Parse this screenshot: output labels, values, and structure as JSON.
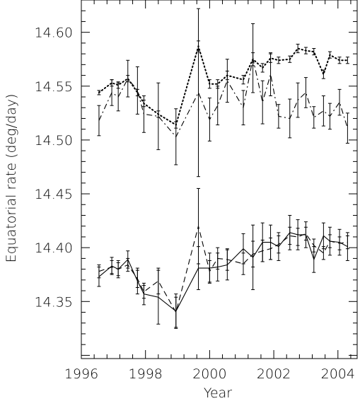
{
  "chart_data": {
    "type": "line",
    "title": "",
    "xlabel": "Year",
    "ylabel": "Equatorial rate (deg/day)",
    "xlim": [
      1996,
      2004.6
    ],
    "ylim": [
      14.297,
      14.63
    ],
    "x_ticks": [
      1996,
      1998,
      2000,
      2002,
      2004
    ],
    "x_tick_labels": [
      "1996",
      "1998",
      "2000",
      "2002",
      "2004"
    ],
    "y_ticks": [
      14.35,
      14.4,
      14.45,
      14.5,
      14.55,
      14.6
    ],
    "y_tick_labels": [
      "14.35",
      "14.40",
      "14.45",
      "14.50",
      "14.55",
      "14.60"
    ],
    "grid": false,
    "legend": "none",
    "series": [
      {
        "style": "dotted",
        "x": [
          1996.55,
          1996.95,
          1997.15,
          1997.45,
          1997.75,
          1997.95,
          1998.4,
          1998.95,
          1999.65,
          2000.0,
          2000.25,
          2000.55,
          2001.05,
          2001.35,
          2001.65,
          2001.9,
          2002.15,
          2002.5,
          2002.75,
          2003.0,
          2003.25,
          2003.55,
          2003.75,
          2004.05,
          2004.3
        ],
        "y": [
          14.544,
          14.553,
          14.551,
          14.557,
          14.544,
          14.534,
          14.524,
          14.514,
          14.587,
          14.552,
          14.552,
          14.56,
          14.556,
          14.575,
          14.567,
          14.576,
          14.574,
          14.575,
          14.585,
          14.583,
          14.582,
          14.561,
          14.579,
          14.574,
          14.574
        ],
        "err": [
          0.002,
          0.003,
          0.003,
          0.003,
          0.003,
          0.003,
          0.003,
          0.003,
          0.005,
          0.004,
          0.004,
          0.004,
          0.004,
          0.006,
          0.004,
          0.004,
          0.003,
          0.003,
          0.004,
          0.003,
          0.003,
          0.004,
          0.003,
          0.003,
          0.003
        ]
      },
      {
        "style": "dash-dot",
        "x": [
          1996.55,
          1996.95,
          1997.15,
          1997.45,
          1997.75,
          1997.95,
          1998.4,
          1998.95,
          1999.65,
          2000.0,
          2000.25,
          2000.55,
          2001.05,
          2001.35,
          2001.65,
          2001.9,
          2002.15,
          2002.5,
          2002.75,
          2003.0,
          2003.25,
          2003.55,
          2003.75,
          2004.05,
          2004.3
        ],
        "y": [
          14.518,
          14.544,
          14.54,
          14.557,
          14.546,
          14.524,
          14.522,
          14.503,
          14.544,
          14.519,
          14.532,
          14.555,
          14.53,
          14.576,
          14.535,
          14.561,
          14.522,
          14.52,
          14.537,
          14.544,
          14.521,
          14.527,
          14.522,
          14.535,
          14.511
        ],
        "err": [
          0.014,
          0.012,
          0.013,
          0.017,
          0.022,
          0.017,
          0.031,
          0.026,
          0.078,
          0.02,
          0.018,
          0.02,
          0.016,
          0.032,
          0.02,
          0.02,
          0.011,
          0.018,
          0.016,
          0.014,
          0.01,
          0.014,
          0.012,
          0.012,
          0.014
        ]
      },
      {
        "style": "dashed",
        "x": [
          1996.55,
          1996.95,
          1997.15,
          1997.45,
          1997.75,
          1997.95,
          1998.4,
          1998.95,
          1999.65,
          2000.0,
          2000.25,
          2000.55,
          2001.05,
          2001.35,
          2001.65,
          2001.9,
          2002.15,
          2002.5,
          2002.75,
          2003.0,
          2003.25,
          2003.55,
          2003.75,
          2004.05,
          2004.3
        ],
        "y": [
          14.378,
          14.382,
          14.38,
          14.384,
          14.371,
          14.359,
          14.369,
          14.34,
          14.42,
          14.378,
          14.39,
          14.389,
          14.385,
          14.394,
          14.397,
          14.399,
          14.403,
          14.411,
          14.41,
          14.413,
          14.402,
          14.395,
          14.406,
          14.404,
          14.405
        ],
        "err": [
          0.006,
          0.006,
          0.006,
          0.006,
          0.008,
          0.006,
          0.012,
          0.014,
          0.035,
          0.01,
          0.01,
          0.01,
          0.01,
          0.012,
          0.01,
          0.01,
          0.008,
          0.008,
          0.008,
          0.006,
          0.006,
          0.006,
          0.006,
          0.006,
          0.006
        ]
      },
      {
        "style": "solid",
        "x": [
          1996.55,
          1996.95,
          1997.15,
          1997.45,
          1997.75,
          1997.95,
          1998.4,
          1998.95,
          1999.65,
          2000.0,
          2000.25,
          2000.55,
          2001.05,
          2001.35,
          2001.65,
          2001.9,
          2002.15,
          2002.5,
          2002.75,
          2003.0,
          2003.25,
          2003.55,
          2003.75,
          2004.05,
          2004.3
        ],
        "y": [
          14.373,
          14.383,
          14.38,
          14.389,
          14.369,
          14.357,
          14.354,
          14.341,
          14.381,
          14.381,
          14.382,
          14.384,
          14.399,
          14.391,
          14.405,
          14.405,
          14.401,
          14.414,
          14.412,
          14.412,
          14.389,
          14.411,
          14.406,
          14.405,
          14.401
        ],
        "err": [
          0.009,
          0.008,
          0.008,
          0.008,
          0.012,
          0.01,
          0.025,
          0.016,
          0.02,
          0.014,
          0.013,
          0.014,
          0.014,
          0.03,
          0.018,
          0.016,
          0.013,
          0.016,
          0.014,
          0.012,
          0.012,
          0.012,
          0.013,
          0.012,
          0.013
        ]
      }
    ]
  }
}
